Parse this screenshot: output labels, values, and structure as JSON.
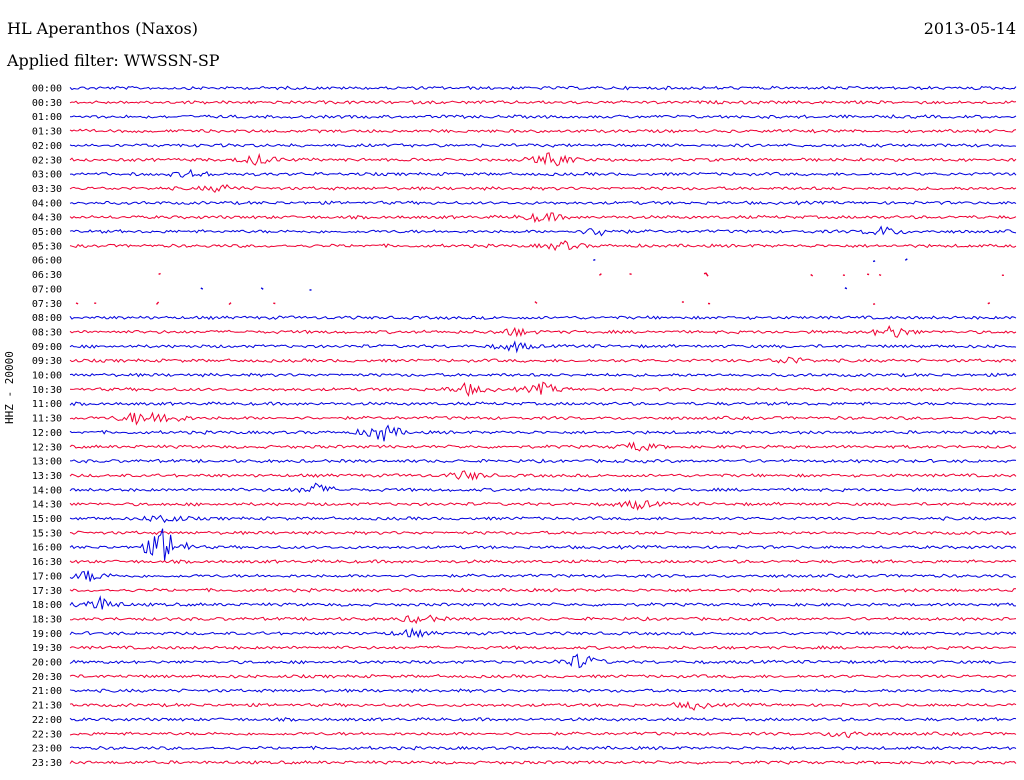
{
  "header": {
    "station": "HL Aperanthos (Naxos)",
    "filter": "Applied filter: WWSSN-SP",
    "date": "2013-05-14"
  },
  "chart_data": {
    "type": "line",
    "title": "HL Aperanthos (Naxos)",
    "subtitle": "Applied filter: WWSSN-SP",
    "ylabel": "HHZ - 20000",
    "colors": [
      "#0000dd",
      "#ee0033"
    ],
    "rows": [
      "00:00",
      "00:30",
      "01:00",
      "01:30",
      "02:00",
      "02:30",
      "03:00",
      "03:30",
      "04:00",
      "04:30",
      "05:00",
      "05:30",
      "06:00",
      "06:30",
      "07:00",
      "07:30",
      "08:00",
      "08:30",
      "09:00",
      "09:30",
      "10:00",
      "10:30",
      "11:00",
      "11:30",
      "12:00",
      "12:30",
      "13:00",
      "13:30",
      "14:00",
      "14:30",
      "15:00",
      "15:30",
      "16:00",
      "16:30",
      "17:00",
      "17:30",
      "18:00",
      "18:30",
      "19:00",
      "19:30",
      "20:00",
      "20:30",
      "21:00",
      "21:30",
      "22:00",
      "22:30",
      "23:00",
      "23:30"
    ]
  }
}
